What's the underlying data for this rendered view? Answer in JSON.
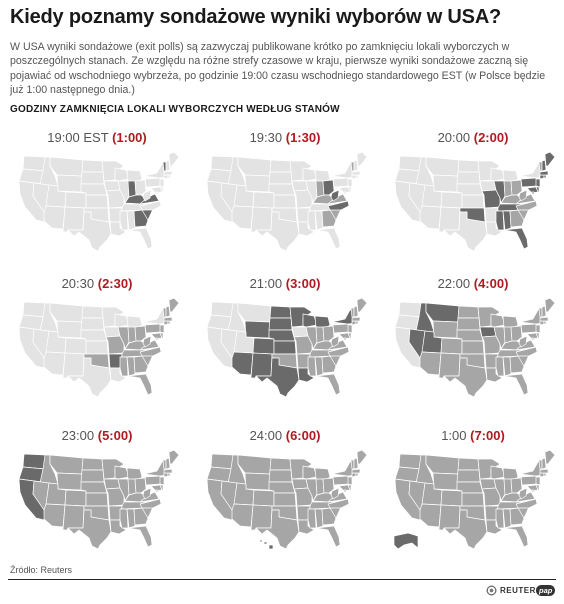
{
  "title": "Kiedy poznamy sondażowe wyniki wyborów w USA?",
  "description": "W USA wyniki sondażowe (exit polls) są zazwyczaj publikowane krótko po zamknięciu lokali wyborczych w poszczególnych stanach. Ze względu na różne strefy czasowe w kraju, pierwsze wyniki sondażowe zaczną się pojawiać od wschodniego wybrzeża, po godzinie 19:00 czasu wschodniego standardowego EST (w Polsce będzie już 1:00 następnego dnia.)",
  "subheading": "GODZINY ZAMKNIĘCIA LOKALI WYBORCZYCH WEDŁUG STANÓW",
  "colors": {
    "closing_now": "#6a6a6a",
    "already_closed": "#a6a6a6",
    "still_open": "#e3e3e3",
    "accent": "#b01a20"
  },
  "panels": [
    {
      "time_est": "19:00 EST",
      "time_pl": "(1:00)",
      "states_closing": [
        "Indiana",
        "Kentucky",
        "Georgia",
        "South Carolina",
        "Virginia",
        "Vermont"
      ]
    },
    {
      "time_est": "19:30",
      "time_pl": "(1:30)",
      "states_closing": [
        "Ohio",
        "West Virginia",
        "North Carolina"
      ]
    },
    {
      "time_est": "20:00",
      "time_pl": "(2:00)",
      "states_closing": [
        "Illinois",
        "Missouri",
        "Oklahoma",
        "Tennessee",
        "Mississippi",
        "Alabama",
        "Florida",
        "Pennsylvania",
        "Maryland",
        "New Jersey",
        "Delaware",
        "Massachusetts",
        "Connecticut",
        "Rhode Island",
        "New Hampshire",
        "Maine",
        "Washington D.C."
      ]
    },
    {
      "time_est": "20:30",
      "time_pl": "(2:30)",
      "states_closing": [
        "Arkansas"
      ]
    },
    {
      "time_est": "21:00",
      "time_pl": "(3:00)",
      "states_closing": [
        "Wyoming",
        "Colorado",
        "New Mexico",
        "Arizona",
        "Texas",
        "North Dakota",
        "South Dakota",
        "Nebraska",
        "Kansas",
        "Minnesota",
        "Wisconsin",
        "Michigan",
        "Louisiana",
        "New York"
      ]
    },
    {
      "time_est": "22:00",
      "time_pl": "(4:00)",
      "states_closing": [
        "Montana",
        "Idaho",
        "Utah",
        "Nevada",
        "Iowa"
      ]
    },
    {
      "time_est": "23:00",
      "time_pl": "(5:00)",
      "states_closing": [
        "Washington",
        "Oregon",
        "California"
      ]
    },
    {
      "time_est": "24:00",
      "time_pl": "(6:00)",
      "states_closing": [
        "Hawaii"
      ]
    },
    {
      "time_est": "1:00",
      "time_pl": "(7:00)",
      "states_closing": [
        "Alaska"
      ]
    }
  ],
  "source": "Źródło: Reuters",
  "credits": {
    "reuters": "REUTERS",
    "pap": "pap"
  }
}
